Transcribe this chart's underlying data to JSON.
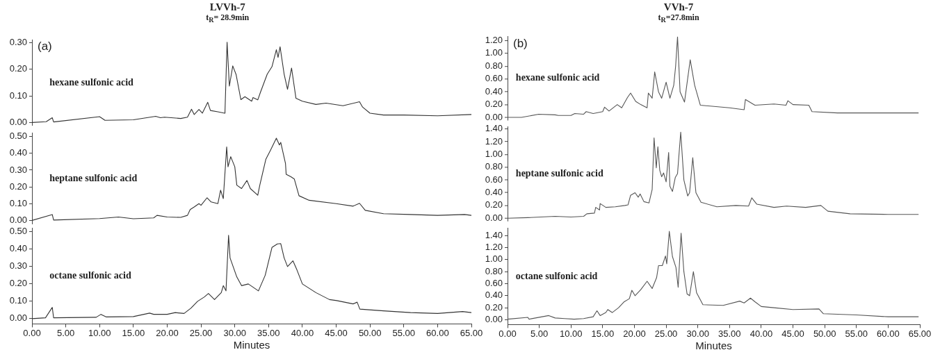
{
  "chart_data": [
    {
      "type": "line",
      "title": "LVVh-7",
      "subtitle": "t$_{R}$= 28.9min",
      "annotations": [
        "(a)",
        "hexane sulfonic acid"
      ],
      "color": "#333333",
      "marker": "none",
      "tick_labels": "y",
      "x": [
        0,
        2.1,
        3.0,
        3.2,
        10.0,
        10.8,
        15,
        18.3,
        19,
        19.6,
        22,
        23,
        23.6,
        24,
        24.7,
        25.2,
        26,
        26.4,
        27.5,
        28.5,
        28.55,
        28.86,
        29.2,
        29.7,
        30.2,
        30.9,
        31.5,
        32.5,
        32.7,
        33.4,
        33.8,
        34.8,
        35.5,
        36.15,
        36.4,
        36.7,
        37.3,
        37.8,
        38.4,
        39.05,
        40,
        42,
        43.5,
        46,
        48.45,
        48.9,
        50,
        52,
        55,
        60,
        65
      ],
      "values": [
        0,
        0.003,
        0.018,
        0.002,
        0.022,
        0.008,
        0.01,
        0.023,
        0.018,
        0.02,
        0.015,
        0.02,
        0.05,
        0.03,
        0.049,
        0.035,
        0.076,
        0.045,
        0.04,
        0.035,
        0.04,
        0.302,
        0.137,
        0.213,
        0.18,
        0.086,
        0.097,
        0.08,
        0.094,
        0.085,
        0.114,
        0.182,
        0.21,
        0.274,
        0.245,
        0.285,
        0.182,
        0.125,
        0.205,
        0.091,
        0.08,
        0.068,
        0.073,
        0.063,
        0.078,
        0.058,
        0.035,
        0.028,
        0.028,
        0.025,
        0.03
      ],
      "xlim": [
        0,
        65
      ],
      "ylim": [
        -0.01,
        0.31
      ],
      "yticks": [
        {
          "value": 0,
          "label": "0.00"
        },
        {
          "value": 0.1,
          "label": "0.10"
        },
        {
          "value": 0.2,
          "label": "0.20"
        },
        {
          "value": 0.3,
          "label": "0.30"
        }
      ]
    },
    {
      "type": "line",
      "annotations": [
        "heptane sulfonic acid"
      ],
      "color": "#333333",
      "marker": "none",
      "tick_labels": "y",
      "x": [
        0,
        3.0,
        3.2,
        10,
        12.8,
        15,
        18,
        18.5,
        20,
        22,
        23,
        23.4,
        24,
        24.7,
        25,
        25.9,
        26.5,
        27.5,
        27.9,
        28.3,
        28.8,
        29.0,
        29.4,
        30,
        30.3,
        31,
        31.8,
        32.3,
        33.4,
        33.7,
        34.6,
        35.3,
        36.15,
        36.6,
        36.8,
        37.5,
        37.6,
        38.3,
        38.8,
        39.5,
        41,
        45,
        47.5,
        48.45,
        49.3,
        52,
        56,
        60,
        64,
        65
      ],
      "values": [
        0,
        0.035,
        0.002,
        0.011,
        0.02,
        0.01,
        0.015,
        0.03,
        0.02,
        0.018,
        0.03,
        0.065,
        0.08,
        0.1,
        0.09,
        0.135,
        0.11,
        0.1,
        0.18,
        0.13,
        0.438,
        0.32,
        0.38,
        0.32,
        0.21,
        0.19,
        0.238,
        0.19,
        0.15,
        0.21,
        0.365,
        0.42,
        0.49,
        0.45,
        0.465,
        0.34,
        0.275,
        0.26,
        0.247,
        0.147,
        0.12,
        0.1,
        0.085,
        0.102,
        0.06,
        0.04,
        0.035,
        0.03,
        0.035,
        0.03
      ],
      "xlim": [
        0,
        65
      ],
      "ylim": [
        -0.02,
        0.52
      ],
      "yticks": [
        {
          "value": 0,
          "label": "0.00"
        },
        {
          "value": 0.1,
          "label": "0.10"
        },
        {
          "value": 0.2,
          "label": "0.20"
        },
        {
          "value": 0.3,
          "label": "0.30"
        },
        {
          "value": 0.4,
          "label": "0.40"
        },
        {
          "value": 0.5,
          "label": "0.50"
        }
      ]
    },
    {
      "type": "line",
      "annotations": [
        "octane sulfonic acid"
      ],
      "xlabel": "Minutes",
      "color": "#333333",
      "marker": "none",
      "x": [
        0,
        2,
        3.0,
        3.2,
        9.5,
        10.2,
        11,
        15,
        17.4,
        18,
        20,
        21.2,
        22.5,
        23.5,
        24.5,
        25.5,
        26.1,
        27,
        28,
        28.3,
        28.7,
        29.08,
        29.3,
        30.3,
        31,
        32,
        33.5,
        34.5,
        35.5,
        36.3,
        36.8,
        37.3,
        37.8,
        38.6,
        39.2,
        40,
        42,
        44,
        45.1,
        47.5,
        48.1,
        48.5,
        52,
        56,
        60,
        63.7,
        65
      ],
      "values": [
        0,
        0.005,
        0.065,
        0.005,
        0.008,
        0.025,
        0.01,
        0.012,
        0.032,
        0.025,
        0.025,
        0.035,
        0.03,
        0.06,
        0.1,
        0.125,
        0.145,
        0.11,
        0.15,
        0.19,
        0.16,
        0.48,
        0.35,
        0.24,
        0.19,
        0.2,
        0.16,
        0.25,
        0.41,
        0.43,
        0.432,
        0.35,
        0.3,
        0.333,
        0.28,
        0.2,
        0.15,
        0.11,
        0.104,
        0.085,
        0.095,
        0.055,
        0.045,
        0.035,
        0.03,
        0.041,
        0.035
      ],
      "xlim": [
        0,
        65
      ],
      "xticks": [
        {
          "value": 0,
          "label": "0.00"
        },
        {
          "value": 5,
          "label": "5.00"
        },
        {
          "value": 10,
          "label": "10.00"
        },
        {
          "value": 15,
          "label": "15.00"
        },
        {
          "value": 20,
          "label": "20.00"
        },
        {
          "value": 25,
          "label": "25.00"
        },
        {
          "value": 30,
          "label": "30.00"
        },
        {
          "value": 35,
          "label": "35.00"
        },
        {
          "value": 40,
          "label": "40.00"
        },
        {
          "value": 45,
          "label": "45.00"
        },
        {
          "value": 50,
          "label": "50.00"
        },
        {
          "value": 55,
          "label": "55.00"
        },
        {
          "value": 60,
          "label": "60.00"
        },
        {
          "value": 65,
          "label": "65.00"
        }
      ],
      "ylim": [
        -0.03,
        0.52
      ],
      "yticks": [
        {
          "value": 0,
          "label": "0.00"
        },
        {
          "value": 0.1,
          "label": "0.10"
        },
        {
          "value": 0.2,
          "label": "0.20"
        },
        {
          "value": 0.3,
          "label": "0.30"
        },
        {
          "value": 0.4,
          "label": "0.40"
        },
        {
          "value": 0.5,
          "label": "0.50"
        }
      ]
    },
    {
      "type": "line",
      "title": "VVh-7",
      "subtitle": "t$_{R}$=27.8min",
      "annotations": [
        "(b)",
        "hexane sulfonic acid"
      ],
      "color": "#555555",
      "marker": "none",
      "tick_labels": "y",
      "x": [
        0,
        2.2,
        4.9,
        7.5,
        8,
        10,
        10.6,
        12,
        12.4,
        13.5,
        15,
        15.3,
        16,
        17.3,
        18,
        18.9,
        19.4,
        20.2,
        21,
        22,
        22.2,
        22.8,
        23.2,
        23.8,
        24.3,
        25,
        25.6,
        26.2,
        26.5,
        26.8,
        27.2,
        27.9,
        28.8,
        29.5,
        30.4,
        35,
        37.3,
        37.5,
        39,
        42,
        43.9,
        44.2,
        45,
        47.5,
        48,
        52,
        60,
        64.8
      ],
      "values": [
        0,
        0,
        0.05,
        0.04,
        0.03,
        0.03,
        0.06,
        0.05,
        0.09,
        0.06,
        0.09,
        0.16,
        0.1,
        0.2,
        0.15,
        0.31,
        0.38,
        0.25,
        0.2,
        0.15,
        0.38,
        0.3,
        0.71,
        0.4,
        0.3,
        0.55,
        0.3,
        0.5,
        0.8,
        1.26,
        0.4,
        0.24,
        0.9,
        0.5,
        0.19,
        0.15,
        0.12,
        0.28,
        0.19,
        0.21,
        0.19,
        0.26,
        0.2,
        0.19,
        0.09,
        0.07,
        0.07,
        0.07
      ],
      "xlim": [
        0,
        65
      ],
      "ylim": [
        -0.04,
        1.26
      ],
      "yticks": [
        {
          "value": 0,
          "label": "0.00"
        },
        {
          "value": 0.2,
          "label": "0.20"
        },
        {
          "value": 0.4,
          "label": "0.40"
        },
        {
          "value": 0.6,
          "label": "0.60"
        },
        {
          "value": 0.8,
          "label": "0.80"
        },
        {
          "value": 1,
          "label": "1.00"
        },
        {
          "value": 1.2,
          "label": "1.20"
        }
      ]
    },
    {
      "type": "line",
      "annotations": [
        "heptane sulfonic acid"
      ],
      "color": "#555555",
      "marker": "none",
      "tick_labels": "y",
      "x": [
        0,
        3.2,
        7.5,
        10,
        12,
        12.5,
        13.7,
        13.9,
        14.5,
        14.6,
        15.5,
        17,
        18.5,
        19,
        19.4,
        20.1,
        20.6,
        20.9,
        21.5,
        22.3,
        22.8,
        23.1,
        23.45,
        23.7,
        24,
        24.3,
        24.6,
        25,
        25.4,
        25.6,
        26,
        26.45,
        26.8,
        27.3,
        27.8,
        28.4,
        28.7,
        29.2,
        29.7,
        30.5,
        33,
        36,
        38,
        38.5,
        39.3,
        42,
        44,
        47,
        49.4,
        50.5,
        54,
        60,
        64.8
      ],
      "values": [
        0,
        0.01,
        0.03,
        0.02,
        0.03,
        0.07,
        0.08,
        0.17,
        0.13,
        0.23,
        0.17,
        0.18,
        0.2,
        0.21,
        0.36,
        0.4,
        0.33,
        0.38,
        0.26,
        0.24,
        0.45,
        1.26,
        0.79,
        1.12,
        0.75,
        0.65,
        0.71,
        0.57,
        1.03,
        0.5,
        0.42,
        0.64,
        0.7,
        1.35,
        0.6,
        0.35,
        0.4,
        0.95,
        0.4,
        0.25,
        0.18,
        0.2,
        0.19,
        0.32,
        0.22,
        0.17,
        0.19,
        0.17,
        0.2,
        0.11,
        0.07,
        0.06,
        0.06
      ],
      "xlim": [
        0,
        65
      ],
      "ylim": [
        -0.04,
        1.43
      ],
      "yticks": [
        {
          "value": 0,
          "label": "0.00"
        },
        {
          "value": 0.2,
          "label": "0.20"
        },
        {
          "value": 0.4,
          "label": "0.40"
        },
        {
          "value": 0.6,
          "label": "0.60"
        },
        {
          "value": 0.8,
          "label": "0.80"
        },
        {
          "value": 1,
          "label": "1.00"
        },
        {
          "value": 1.2,
          "label": "1.20"
        },
        {
          "value": 1.4,
          "label": "1.40"
        }
      ]
    },
    {
      "type": "line",
      "annotations": [
        "octane sulfonic acid"
      ],
      "xlabel": "Minutes",
      "color": "#555555",
      "marker": "none",
      "x": [
        0,
        3.2,
        3.4,
        6.5,
        7.5,
        9,
        10.5,
        12,
        13.5,
        14.1,
        14.6,
        15.5,
        15.8,
        16.5,
        17.5,
        18.4,
        19.2,
        19.6,
        20.1,
        21,
        22,
        22.8,
        23.5,
        23.8,
        24.4,
        24.9,
        25.1,
        25.5,
        26,
        26.55,
        26.9,
        27.36,
        27.8,
        28.3,
        28.7,
        29.3,
        29.8,
        30.8,
        34,
        36.6,
        37.3,
        38.3,
        39,
        40,
        42,
        45,
        49.1,
        49.8,
        55,
        60,
        64.8
      ],
      "values": [
        0.01,
        0.04,
        0.01,
        0.07,
        0.03,
        0.02,
        0.01,
        0.02,
        0.05,
        0.15,
        0.07,
        0.12,
        0.17,
        0.12,
        0.2,
        0.3,
        0.35,
        0.49,
        0.4,
        0.5,
        0.64,
        0.52,
        0.7,
        0.9,
        0.9,
        1.06,
        0.93,
        1.47,
        1.05,
        0.87,
        0.54,
        1.44,
        0.8,
        0.43,
        0.4,
        0.8,
        0.45,
        0.25,
        0.24,
        0.31,
        0.28,
        0.36,
        0.3,
        0.22,
        0.2,
        0.17,
        0.18,
        0.1,
        0.08,
        0.05,
        0.05
      ],
      "xlim": [
        0,
        65
      ],
      "xticks": [
        {
          "value": 0,
          "label": "0.00"
        },
        {
          "value": 5,
          "label": "5.00"
        },
        {
          "value": 10,
          "label": "10.00"
        },
        {
          "value": 15,
          "label": "15.00"
        },
        {
          "value": 20,
          "label": "20.00"
        },
        {
          "value": 25,
          "label": "25.00"
        },
        {
          "value": 30,
          "label": "30.00"
        },
        {
          "value": 35,
          "label": "35.00"
        },
        {
          "value": 40,
          "label": "40.00"
        },
        {
          "value": 45,
          "label": "45.00"
        },
        {
          "value": 50,
          "label": "50.00"
        },
        {
          "value": 55,
          "label": "55.00"
        },
        {
          "value": 60,
          "label": "60.00"
        },
        {
          "value": 65,
          "label": "65.00"
        }
      ],
      "ylim": [
        -0.08,
        1.52
      ],
      "yticks": [
        {
          "value": 0,
          "label": "0.00"
        },
        {
          "value": 0.2,
          "label": "0.20"
        },
        {
          "value": 0.4,
          "label": "0.40"
        },
        {
          "value": 0.6,
          "label": "0.60"
        },
        {
          "value": 0.8,
          "label": "0.80"
        },
        {
          "value": 1,
          "label": "1.00"
        },
        {
          "value": 1.2,
          "label": "1.20"
        },
        {
          "value": 1.4,
          "label": "1.40"
        }
      ]
    }
  ]
}
